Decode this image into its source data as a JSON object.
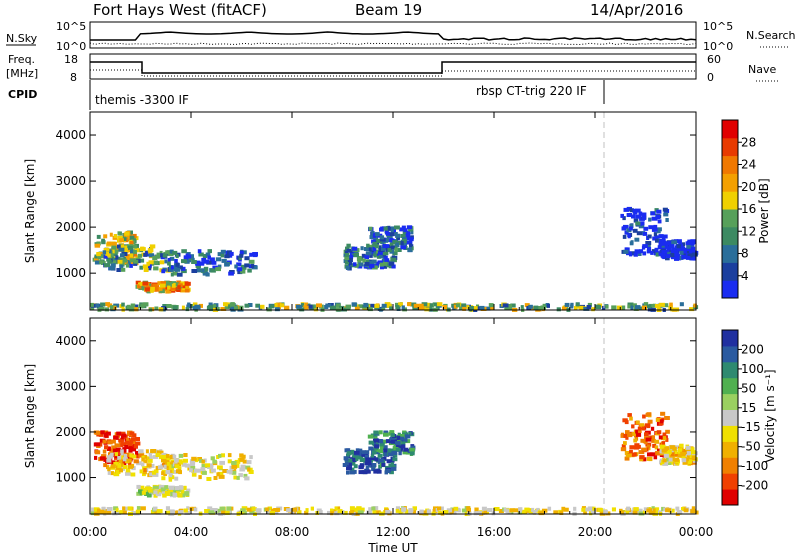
{
  "header": {
    "title": "Fort Hays West (fitACF)",
    "beam": "Beam 19",
    "date": "14/Apr/2016"
  },
  "strips": {
    "nsky_label": "N.Sky",
    "nsearch_label": "N.Search",
    "nsky_left_ticks": [
      "10^5",
      "10^0"
    ],
    "nsky_right_ticks": [
      "10^5",
      "10^0"
    ],
    "freq_label": "Freq.",
    "freq_unit": "[MHz]",
    "freq_ticks": [
      "18",
      "8"
    ],
    "nave_label": "Nave",
    "nave_ticks": [
      "60",
      "0"
    ],
    "cpid_label": "CPID",
    "cpid_segments": [
      "themis -3300 IF",
      "rbsp CT-trig 220 IF"
    ]
  },
  "colorbars": {
    "power": {
      "label": "Power [dB]",
      "ticks": [
        "4",
        "8",
        "12",
        "16",
        "20",
        "24",
        "28"
      ],
      "colors": [
        "#1a2cf0",
        "#1b3f9e",
        "#2a6e9a",
        "#3c8a62",
        "#57a05a",
        "#f0d000",
        "#f4a000",
        "#f07800",
        "#e83a00",
        "#e00000"
      ]
    },
    "velocity": {
      "label": "Velocity [m s⁻¹]",
      "ticks": [
        "200",
        "100",
        "50",
        "15",
        "-15",
        "-50",
        "-100",
        "-200"
      ],
      "colors": [
        "#2030a0",
        "#2a5aa0",
        "#2e8a70",
        "#50b050",
        "#9ad060",
        "#c8c8c8",
        "#f0e000",
        "#f0b000",
        "#f08000",
        "#f04000",
        "#e00000"
      ]
    }
  },
  "chart_data": [
    {
      "type": "heatmap",
      "name": "power",
      "ylabel": "Slant Range [km]",
      "yticks": [
        "1000",
        "2000",
        "3000",
        "4000"
      ],
      "xticks": [],
      "xlim": [
        0,
        24
      ],
      "ylim": [
        200,
        4500
      ],
      "patches": [
        {
          "t": [
            0.1,
            1.8
          ],
          "r": [
            1200,
            1900
          ],
          "v": 16
        },
        {
          "t": [
            0.5,
            3.2
          ],
          "r": [
            1050,
            1600
          ],
          "v": 12
        },
        {
          "t": [
            1.8,
            3.8
          ],
          "r": [
            600,
            800
          ],
          "v": 20
        },
        {
          "t": [
            2.8,
            6.5
          ],
          "r": [
            950,
            1500
          ],
          "v": 8
        },
        {
          "t": [
            10.0,
            12.0
          ],
          "r": [
            1100,
            1600
          ],
          "v": 10
        },
        {
          "t": [
            11.0,
            12.7
          ],
          "r": [
            1500,
            2000
          ],
          "v": 8
        },
        {
          "t": [
            21.0,
            22.8
          ],
          "r": [
            1400,
            2400
          ],
          "v": 6
        },
        {
          "t": [
            22.5,
            23.9
          ],
          "r": [
            1300,
            1700
          ],
          "v": 4
        },
        {
          "t": [
            0.0,
            24.0
          ],
          "r": [
            200,
            330
          ],
          "v": 14
        }
      ]
    },
    {
      "type": "heatmap",
      "name": "velocity",
      "ylabel": "Slant Range [km]",
      "yticks": [
        "1000",
        "2000",
        "3000",
        "4000"
      ],
      "xticks": [
        "00:00",
        "04:00",
        "08:00",
        "12:00",
        "16:00",
        "20:00",
        "00:00"
      ],
      "xlabel": "Time UT",
      "xlim": [
        0,
        24
      ],
      "ylim": [
        200,
        4500
      ],
      "patches": [
        {
          "t": [
            0.1,
            1.8
          ],
          "r": [
            1300,
            2000
          ],
          "v": -150
        },
        {
          "t": [
            0.5,
            3.2
          ],
          "r": [
            1050,
            1600
          ],
          "v": -40
        },
        {
          "t": [
            1.8,
            3.8
          ],
          "r": [
            600,
            800
          ],
          "v": 5
        },
        {
          "t": [
            2.8,
            6.5
          ],
          "r": [
            950,
            1500
          ],
          "v": -20
        },
        {
          "t": [
            10.0,
            12.0
          ],
          "r": [
            1100,
            1600
          ],
          "v": 150
        },
        {
          "t": [
            11.0,
            12.7
          ],
          "r": [
            1500,
            2000
          ],
          "v": 120
        },
        {
          "t": [
            21.0,
            22.8
          ],
          "r": [
            1400,
            2400
          ],
          "v": -120
        },
        {
          "t": [
            22.5,
            23.9
          ],
          "r": [
            1300,
            1700
          ],
          "v": -40
        },
        {
          "t": [
            0.0,
            24.0
          ],
          "r": [
            200,
            330
          ],
          "v": -30
        }
      ]
    }
  ]
}
